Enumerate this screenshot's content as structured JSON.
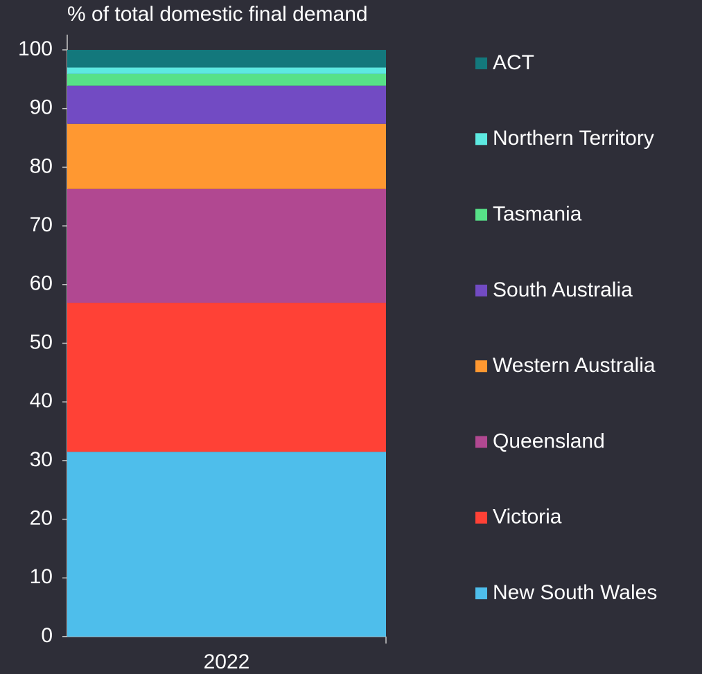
{
  "chart_data": {
    "type": "stacked_bar",
    "title": "% of total domestic final demand",
    "categories": [
      "2022"
    ],
    "series": [
      {
        "name": "New South Wales",
        "color": "#4ebeeb",
        "values": [
          31.5
        ]
      },
      {
        "name": "Victoria",
        "color": "#ff4136",
        "values": [
          25.4
        ]
      },
      {
        "name": "Queensland",
        "color": "#b14891",
        "values": [
          19.4
        ]
      },
      {
        "name": "Western Australia",
        "color": "#ff9831",
        "values": [
          11.1
        ]
      },
      {
        "name": "South Australia",
        "color": "#724bc3",
        "values": [
          6.5
        ]
      },
      {
        "name": "Tasmania",
        "color": "#57e188",
        "values": [
          2.0
        ]
      },
      {
        "name": "Northern Territory",
        "color": "#5de9e1",
        "values": [
          1.1
        ]
      },
      {
        "name": "ACT",
        "color": "#13787c",
        "values": [
          3.0
        ]
      }
    ],
    "ylim": [
      0,
      100
    ],
    "yticks": [
      0,
      10,
      20,
      30,
      40,
      50,
      60,
      70,
      80,
      90,
      100
    ]
  }
}
